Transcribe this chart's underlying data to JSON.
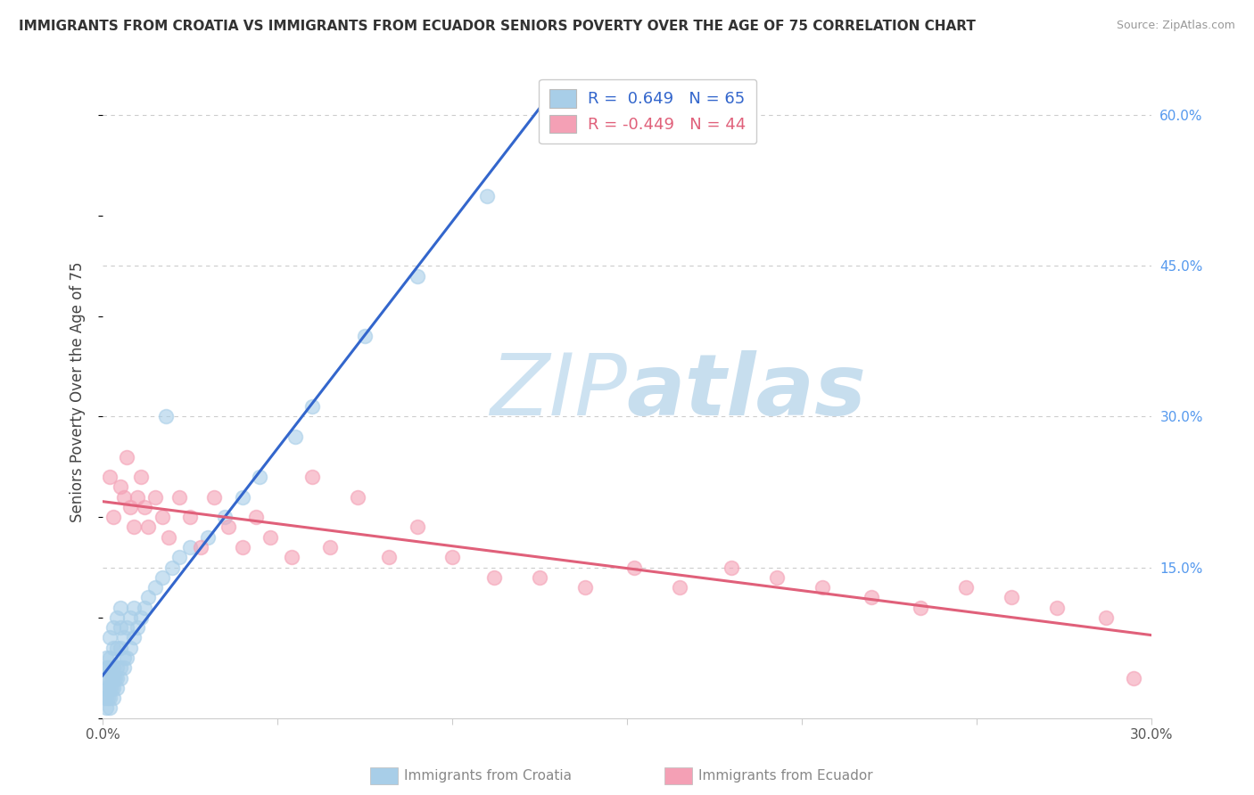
{
  "title": "IMMIGRANTS FROM CROATIA VS IMMIGRANTS FROM ECUADOR SENIORS POVERTY OVER THE AGE OF 75 CORRELATION CHART",
  "source": "Source: ZipAtlas.com",
  "ylabel": "Seniors Poverty Over the Age of 75",
  "xlim": [
    0.0,
    0.3
  ],
  "ylim": [
    0.0,
    0.65
  ],
  "x_ticks": [
    0.0,
    0.05,
    0.1,
    0.15,
    0.2,
    0.25,
    0.3
  ],
  "x_tick_labels": [
    "0.0%",
    "",
    "",
    "",
    "",
    "",
    "30.0%"
  ],
  "y_ticks_right": [
    0.0,
    0.15,
    0.3,
    0.45,
    0.6
  ],
  "y_tick_labels_right": [
    "",
    "15.0%",
    "30.0%",
    "45.0%",
    "60.0%"
  ],
  "croatia_R": 0.649,
  "croatia_N": 65,
  "ecuador_R": -0.449,
  "ecuador_N": 44,
  "croatia_color": "#A8CEE8",
  "ecuador_color": "#F4A0B5",
  "croatia_line_color": "#3366CC",
  "ecuador_line_color": "#E0607A",
  "grid_color": "#CCCCCC",
  "background_color": "#FFFFFF",
  "watermark_zip": "ZIP",
  "watermark_atlas": "atlas",
  "croatia_x": [
    0.0005,
    0.0005,
    0.001,
    0.001,
    0.001,
    0.001,
    0.001,
    0.0015,
    0.0015,
    0.0015,
    0.002,
    0.002,
    0.002,
    0.002,
    0.002,
    0.002,
    0.002,
    0.0025,
    0.0025,
    0.003,
    0.003,
    0.003,
    0.003,
    0.003,
    0.003,
    0.0035,
    0.004,
    0.004,
    0.004,
    0.004,
    0.004,
    0.005,
    0.005,
    0.005,
    0.005,
    0.005,
    0.006,
    0.006,
    0.006,
    0.007,
    0.007,
    0.008,
    0.008,
    0.009,
    0.009,
    0.01,
    0.011,
    0.012,
    0.013,
    0.015,
    0.017,
    0.018,
    0.02,
    0.022,
    0.025,
    0.03,
    0.035,
    0.04,
    0.045,
    0.055,
    0.06,
    0.075,
    0.09,
    0.11,
    0.13
  ],
  "croatia_y": [
    0.02,
    0.03,
    0.01,
    0.02,
    0.04,
    0.05,
    0.06,
    0.02,
    0.03,
    0.05,
    0.01,
    0.02,
    0.03,
    0.04,
    0.05,
    0.06,
    0.08,
    0.03,
    0.04,
    0.02,
    0.03,
    0.04,
    0.05,
    0.07,
    0.09,
    0.04,
    0.03,
    0.04,
    0.05,
    0.07,
    0.1,
    0.04,
    0.05,
    0.07,
    0.09,
    0.11,
    0.05,
    0.06,
    0.08,
    0.06,
    0.09,
    0.07,
    0.1,
    0.08,
    0.11,
    0.09,
    0.1,
    0.11,
    0.12,
    0.13,
    0.14,
    0.3,
    0.15,
    0.16,
    0.17,
    0.18,
    0.2,
    0.22,
    0.24,
    0.28,
    0.31,
    0.38,
    0.44,
    0.52,
    0.62
  ],
  "ecuador_x": [
    0.002,
    0.003,
    0.005,
    0.006,
    0.007,
    0.008,
    0.009,
    0.01,
    0.011,
    0.012,
    0.013,
    0.015,
    0.017,
    0.019,
    0.022,
    0.025,
    0.028,
    0.032,
    0.036,
    0.04,
    0.044,
    0.048,
    0.054,
    0.06,
    0.065,
    0.073,
    0.082,
    0.09,
    0.1,
    0.112,
    0.125,
    0.138,
    0.152,
    0.165,
    0.18,
    0.193,
    0.206,
    0.22,
    0.234,
    0.247,
    0.26,
    0.273,
    0.287,
    0.295
  ],
  "ecuador_y": [
    0.24,
    0.2,
    0.23,
    0.22,
    0.26,
    0.21,
    0.19,
    0.22,
    0.24,
    0.21,
    0.19,
    0.22,
    0.2,
    0.18,
    0.22,
    0.2,
    0.17,
    0.22,
    0.19,
    0.17,
    0.2,
    0.18,
    0.16,
    0.24,
    0.17,
    0.22,
    0.16,
    0.19,
    0.16,
    0.14,
    0.14,
    0.13,
    0.15,
    0.13,
    0.15,
    0.14,
    0.13,
    0.12,
    0.11,
    0.13,
    0.12,
    0.11,
    0.1,
    0.04
  ]
}
